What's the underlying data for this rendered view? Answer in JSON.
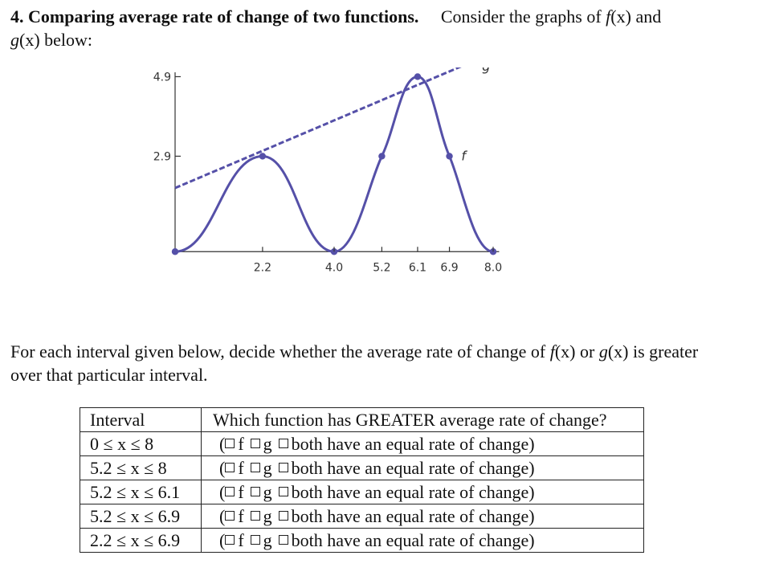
{
  "problem": {
    "number": "4.",
    "heading": "Comparing average rate of change of two functions.",
    "intro_before_f": "Consider the graphs of",
    "f_label": "f",
    "arg": "(x)",
    "and_word": "and",
    "g_label": "g",
    "below": "below:"
  },
  "chart_data": {
    "type": "line",
    "y_ticks": [
      "4.9",
      "2.9"
    ],
    "x_ticks": [
      "2.2",
      "4.0",
      "5.2",
      "6.1",
      "6.9",
      "8.0"
    ],
    "series": [
      {
        "name": "f",
        "points": [
          [
            0,
            0.5
          ],
          [
            2.2,
            2.9
          ],
          [
            4.0,
            0.5
          ],
          [
            5.2,
            2.9
          ],
          [
            6.1,
            4.9
          ],
          [
            6.9,
            2.9
          ],
          [
            8.0,
            0.5
          ]
        ]
      },
      {
        "name": "g",
        "points": [
          [
            0,
            2.1
          ],
          [
            8.0,
            5.5
          ]
        ]
      }
    ],
    "marked_points": [
      [
        0,
        0.5
      ],
      [
        2.2,
        2.9
      ],
      [
        4.0,
        0.5
      ],
      [
        5.2,
        2.9
      ],
      [
        6.1,
        4.9
      ],
      [
        6.9,
        2.9
      ],
      [
        8.0,
        0.5
      ]
    ],
    "colors": {
      "f": "#5550a8",
      "g": "#5550a8",
      "axis": "#333333"
    },
    "g_style": "dashed"
  },
  "instruction": {
    "text1": "For each interval given below, decide whether the average rate of change of",
    "f": "f",
    "arg": "(x)",
    "or": "or",
    "g": "g",
    "text2": "is greater over that particular interval."
  },
  "table": {
    "header_interval": "Interval",
    "header_question": "Which function has GREATER average rate of change?",
    "rows": [
      {
        "interval": "0 ≤ x ≤ 8",
        "opt_paren": "(",
        "opt_f": "f",
        "opt_g": "g",
        "opt_both": "both have an equal rate of change)"
      },
      {
        "interval": "5.2 ≤ x ≤ 8",
        "opt_paren": "(",
        "opt_f": "f",
        "opt_g": "g",
        "opt_both": "both have an equal rate of change)"
      },
      {
        "interval": "5.2 ≤ x ≤ 6.1",
        "opt_paren": "(",
        "opt_f": "f",
        "opt_g": "g",
        "opt_both": "both have an equal rate of change)"
      },
      {
        "interval": "5.2 ≤ x ≤ 6.9",
        "opt_paren": "(",
        "opt_f": "f",
        "opt_g": "g",
        "opt_both": "both have an equal rate of change)"
      },
      {
        "interval": "2.2 ≤ x ≤ 6.9",
        "opt_paren": "(",
        "opt_f": "f",
        "opt_g": "g",
        "opt_both": "both have an equal rate of change)"
      }
    ]
  }
}
